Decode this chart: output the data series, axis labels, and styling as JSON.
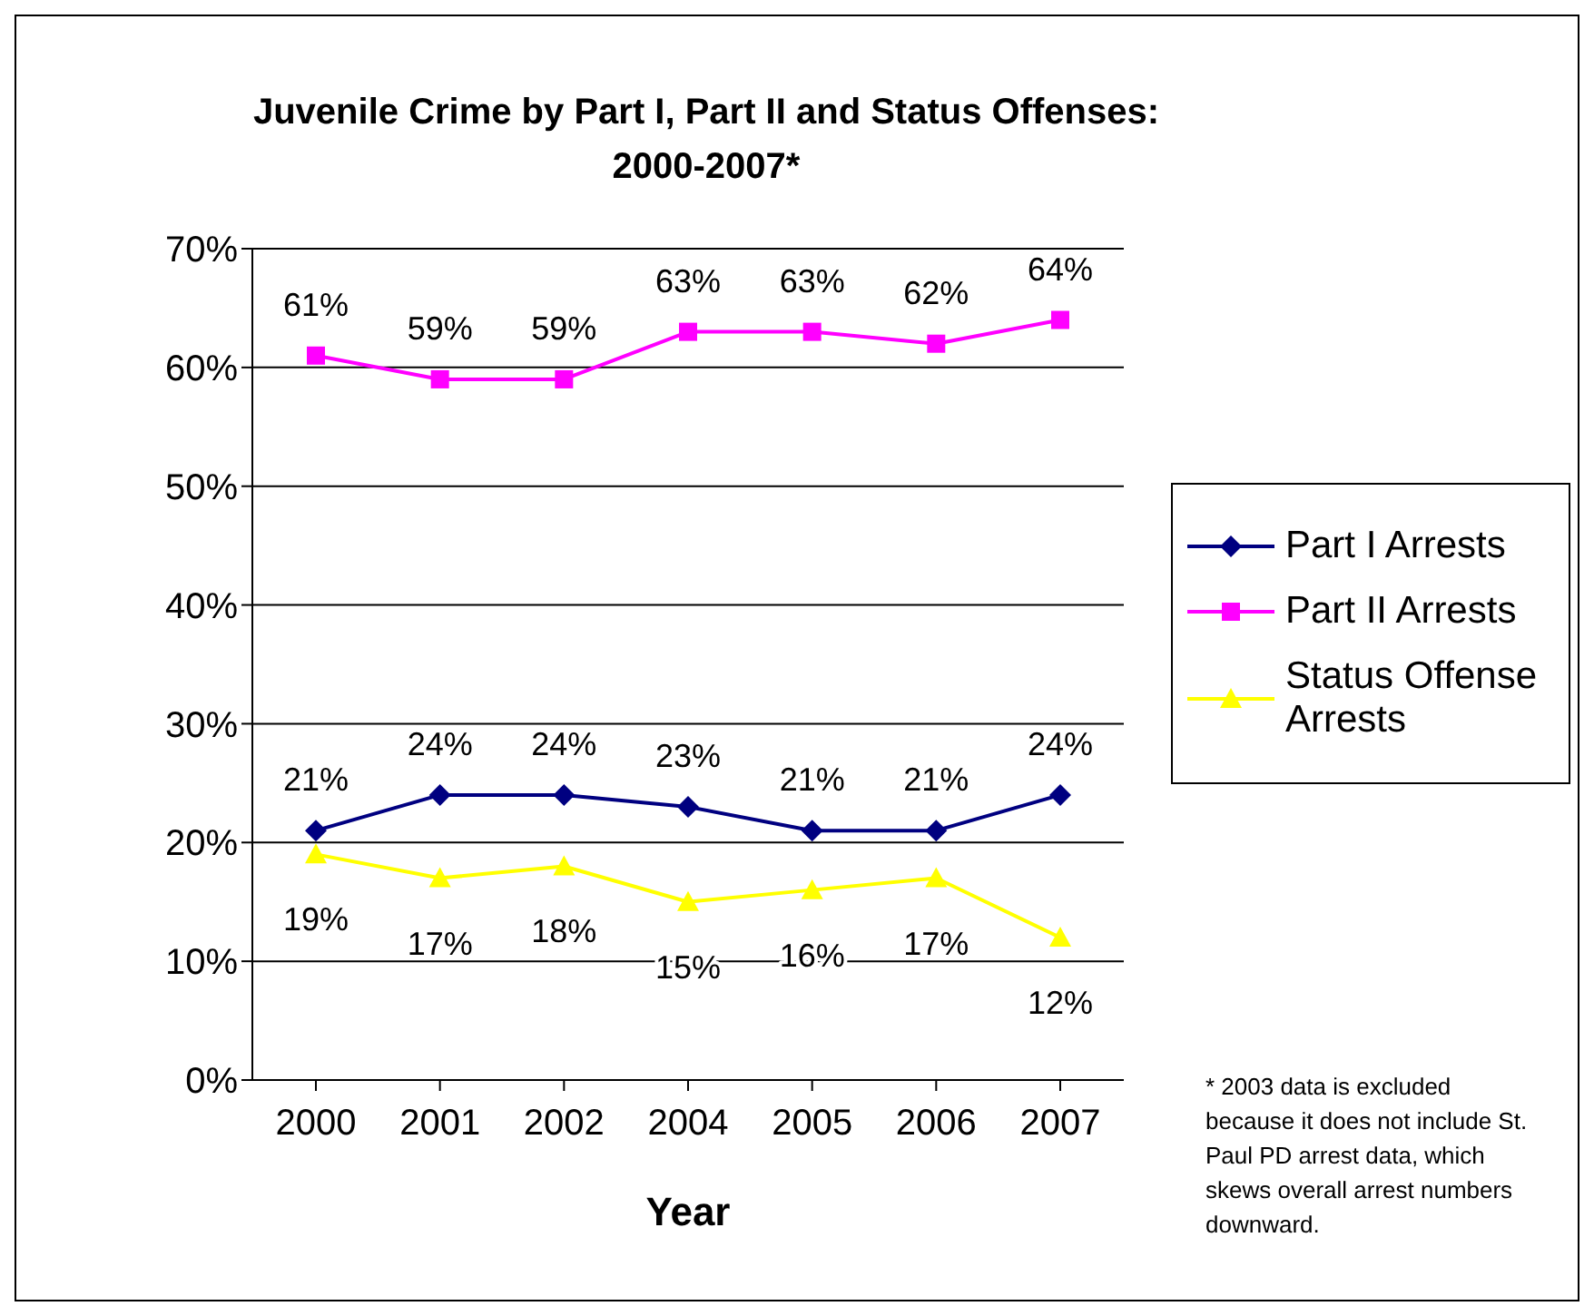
{
  "chart_data": {
    "type": "line",
    "title": "Juvenile Crime by Part I, Part II and Status Offenses: 2000-2007*",
    "xlabel": "Year",
    "categories": [
      "2000",
      "2001",
      "2002",
      "2004",
      "2005",
      "2006",
      "2007"
    ],
    "series": [
      {
        "name": "Part I Arrests",
        "color": "#000080",
        "marker": "diamond",
        "values": [
          21,
          24,
          24,
          23,
          21,
          21,
          24
        ],
        "value_labels": [
          "21%",
          "24%",
          "24%",
          "23%",
          "21%",
          "21%",
          "24%"
        ]
      },
      {
        "name": "Part II Arrests",
        "color": "#ff00ff",
        "marker": "square",
        "values": [
          61,
          59,
          59,
          63,
          63,
          62,
          64
        ],
        "value_labels": [
          "61%",
          "59%",
          "59%",
          "63%",
          "63%",
          "62%",
          "64%"
        ]
      },
      {
        "name": "Status Offense Arrests",
        "color": "#ffff00",
        "marker": "triangle",
        "values": [
          19,
          17,
          18,
          15,
          16,
          17,
          12
        ],
        "value_labels": [
          "19%",
          "17%",
          "18%",
          "15%",
          "16%",
          "17%",
          "12%"
        ]
      }
    ],
    "ylim": [
      0,
      70
    ],
    "yticks": [
      {
        "value": 0,
        "label": "0%"
      },
      {
        "value": 10,
        "label": "10%"
      },
      {
        "value": 20,
        "label": "20%"
      },
      {
        "value": 30,
        "label": "30%"
      },
      {
        "value": 40,
        "label": "40%"
      },
      {
        "value": 50,
        "label": "50%"
      },
      {
        "value": 60,
        "label": "60%"
      },
      {
        "value": 70,
        "label": "70%"
      }
    ],
    "grid": "y",
    "legend": "right",
    "annotations": [
      "* 2003 data is excluded because it does not include St. Paul PD arrest data, which skews overall arrest numbers downward."
    ]
  }
}
